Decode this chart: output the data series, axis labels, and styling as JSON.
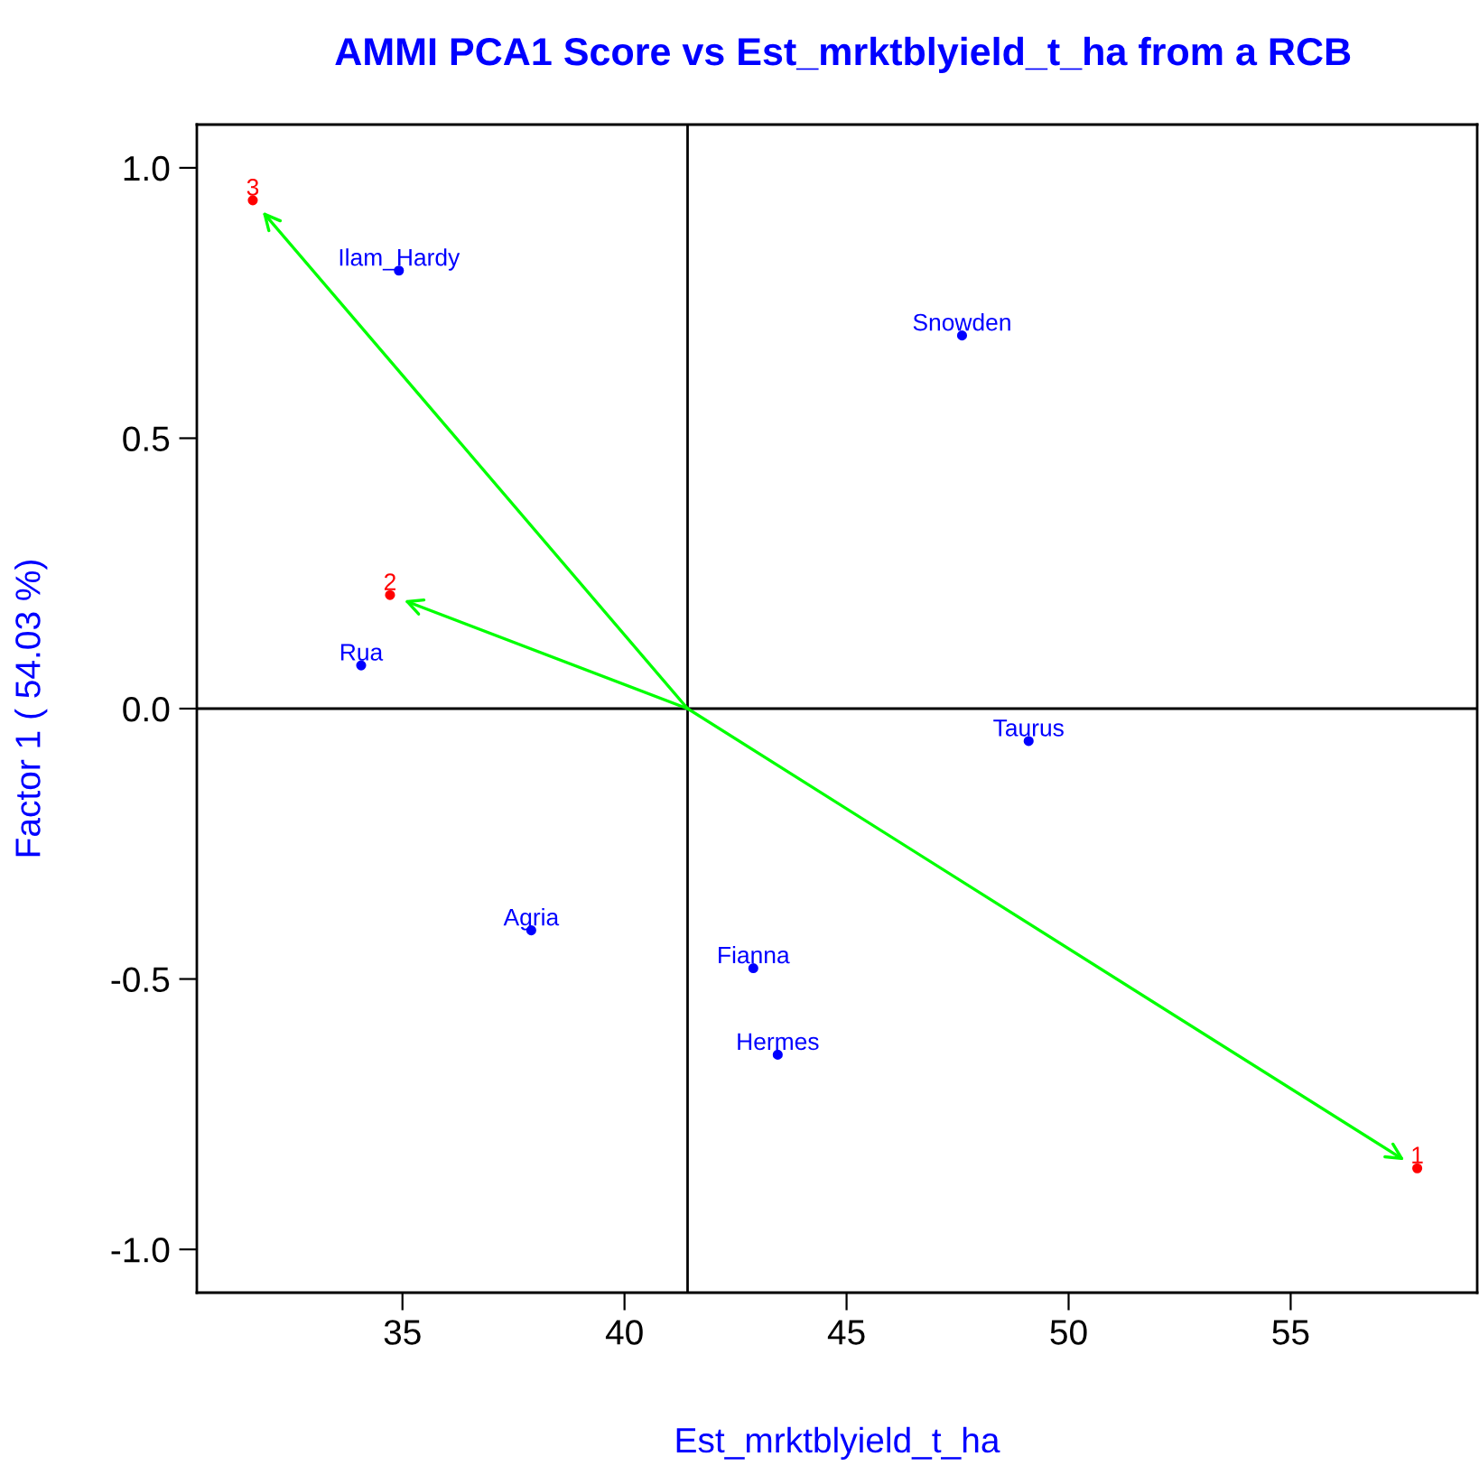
{
  "chart_data": {
    "type": "scatter",
    "title": "AMMI PCA1 Score vs Est_mrktblyield_t_ha from a RCB",
    "xlabel": "Est_mrktblyield_t_ha",
    "ylabel": "Factor 1 ( 54.03 %)",
    "marker": "circle",
    "grid": false,
    "legend": false,
    "series": [
      {
        "color": "#0000ff",
        "x": [
          34.92,
          47.6,
          34.07,
          49.1,
          37.9,
          42.9,
          43.45
        ],
        "values": [
          0.81,
          0.69,
          0.08,
          -0.06,
          -0.41,
          -0.48,
          -0.64
        ]
      },
      {
        "color": "#ff0000",
        "x": [
          57.85,
          34.72,
          31.63
        ],
        "values": [
          -0.85,
          0.21,
          0.94
        ]
      }
    ],
    "annotations": [
      {
        "text": "Ilam_Hardy",
        "x": 34.92,
        "y": 0.81
      },
      {
        "text": "Snowden",
        "x": 47.6,
        "y": 0.69
      },
      {
        "text": "Rua",
        "x": 34.07,
        "y": 0.08
      },
      {
        "text": "Taurus",
        "x": 49.1,
        "y": -0.06
      },
      {
        "text": "Agria",
        "x": 37.9,
        "y": -0.41
      },
      {
        "text": "Fianna",
        "x": 42.9,
        "y": -0.48
      },
      {
        "text": "Hermes",
        "x": 43.45,
        "y": -0.64
      },
      {
        "text": "1",
        "x": 57.85,
        "y": -0.85
      },
      {
        "text": "2",
        "x": 34.72,
        "y": 0.21
      },
      {
        "text": "3",
        "x": 31.63,
        "y": 0.94
      }
    ],
    "ref_lines": [
      {
        "axis": "x",
        "value": 41.42,
        "color": "#000000"
      },
      {
        "axis": "y",
        "value": 0,
        "color": "#000000"
      }
    ],
    "xlim": [
      30.37,
      59.2
    ],
    "ylim": [
      -1.08,
      1.08
    ],
    "xticks": [
      35,
      40,
      45,
      50,
      55
    ],
    "yticks": [
      {
        "value": -1.0,
        "label": "-1.0"
      },
      {
        "value": -0.5,
        "label": "-0.5"
      },
      {
        "value": 0.0,
        "label": "0.0"
      },
      {
        "value": 0.5,
        "label": "0.5"
      },
      {
        "value": 1.0,
        "label": "1.0"
      }
    ]
  }
}
